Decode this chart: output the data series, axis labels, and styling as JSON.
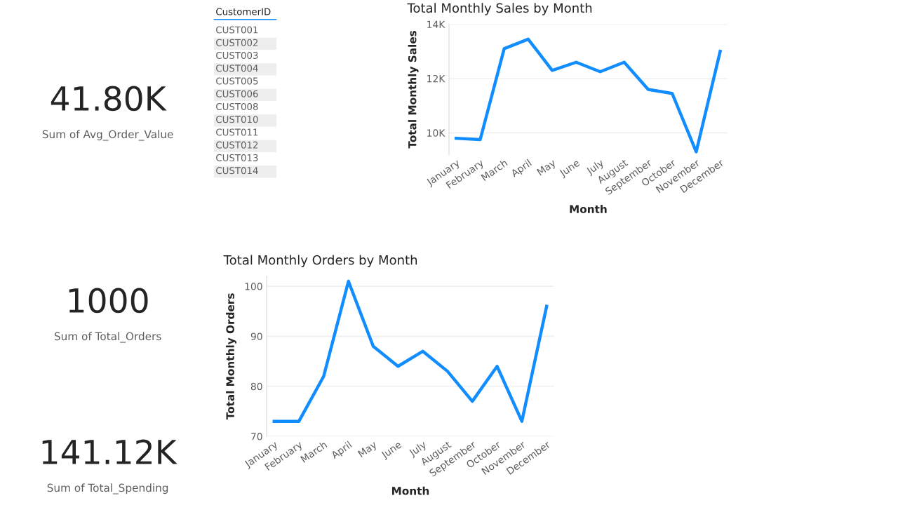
{
  "chart_data": [
    {
      "type": "other",
      "title": "41.80K",
      "subtitle": "Sum of Avg_Order_Value"
    },
    {
      "type": "other",
      "title": "CustomerID",
      "categories": [
        "CUST001",
        "CUST002",
        "CUST003",
        "CUST004",
        "CUST005",
        "CUST006",
        "CUST008",
        "CUST010",
        "CUST011",
        "CUST012",
        "CUST013",
        "CUST014"
      ]
    },
    {
      "type": "line",
      "title": "Total Monthly Sales by Month",
      "xlabel": "Month",
      "ylabel": "Total Monthly Sales",
      "categories": [
        "January",
        "February",
        "March",
        "April",
        "May",
        "June",
        "July",
        "August",
        "September",
        "October",
        "November",
        "December"
      ],
      "series": [
        {
          "color": "#118dff",
          "values": [
            9800,
            9750,
            13100,
            13450,
            12300,
            12600,
            12250,
            12600,
            11600,
            11450,
            9300,
            13000
          ]
        }
      ],
      "ylim": [
        9200,
        14000
      ],
      "yticks": [
        {
          "value": 10000,
          "label": "10K"
        },
        {
          "value": 12000,
          "label": "12K"
        },
        {
          "value": 14000,
          "label": "14K"
        }
      ],
      "grid": "y"
    },
    {
      "type": "line",
      "title": "Total Monthly Orders by Month",
      "xlabel": "Month",
      "ylabel": "Total Monthly Orders",
      "categories": [
        "January",
        "February",
        "March",
        "April",
        "May",
        "June",
        "July",
        "August",
        "September",
        "October",
        "November",
        "December"
      ],
      "series": [
        {
          "color": "#118dff",
          "values": [
            73,
            73,
            82,
            101,
            88,
            84,
            87,
            83,
            77,
            84,
            73,
            96
          ]
        }
      ],
      "ylim": [
        70,
        102
      ],
      "yticks": [
        70,
        80,
        90,
        100
      ],
      "grid": "y"
    },
    {
      "type": "other",
      "title": "1000",
      "subtitle": "Sum of Total_Orders"
    },
    {
      "type": "other",
      "title": "141.12K",
      "subtitle": "Sum of Total_Spending"
    }
  ]
}
